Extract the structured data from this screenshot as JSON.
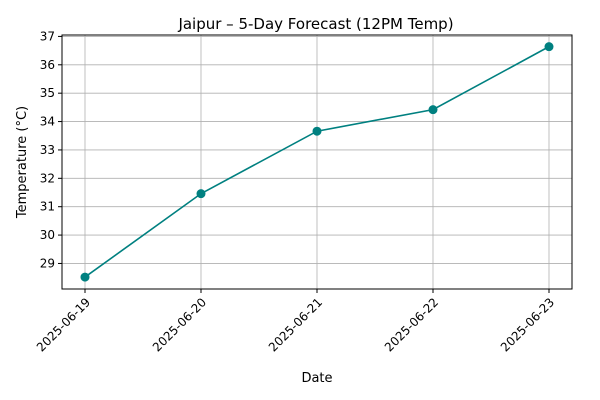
{
  "chart_data": {
    "type": "line",
    "title": "Jaipur – 5-Day Forecast (12PM Temp)",
    "xlabel": "Date",
    "ylabel": "Temperature (°C)",
    "categories": [
      "2025-06-19",
      "2025-06-20",
      "2025-06-21",
      "2025-06-22",
      "2025-06-23"
    ],
    "values": [
      28.52,
      31.46,
      33.66,
      34.42,
      36.64
    ],
    "ylim": [
      28.1,
      37.05
    ],
    "yticks": [
      29,
      30,
      31,
      32,
      33,
      34,
      35,
      36,
      37
    ],
    "grid": true,
    "color": "#008080"
  }
}
